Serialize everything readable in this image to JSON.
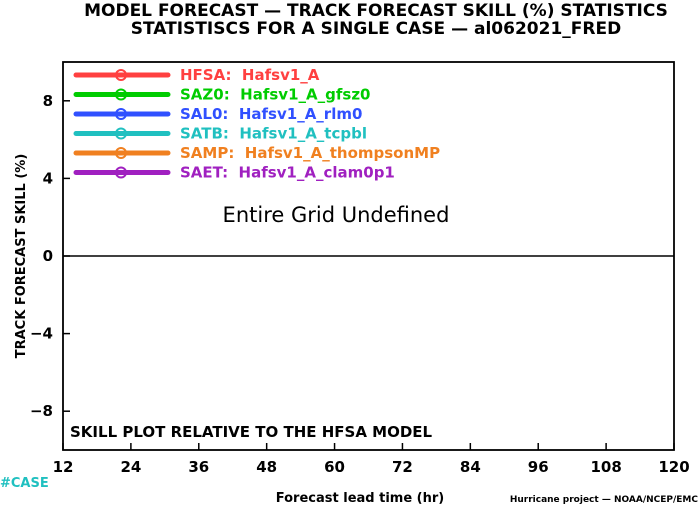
{
  "chart_data": {
    "type": "line",
    "title": "MODEL FORECAST — TRACK FORECAST SKILL (%) STATISTICS",
    "subtitle": "STATISTISCS FOR A SINGLE CASE — al062021_FRED",
    "xlabel": "Forecast lead time (hr)",
    "ylabel": "TRACK FORECAST SKILL (%)",
    "xlim": [
      12,
      120
    ],
    "ylim": [
      -10,
      10
    ],
    "x_ticks": [
      "12",
      "24",
      "36",
      "48",
      "60",
      "72",
      "84",
      "96",
      "108",
      "120"
    ],
    "y_ticks": [
      "8",
      "4",
      "0",
      "−4",
      "−8"
    ],
    "x_tick_values": [
      12,
      24,
      36,
      48,
      60,
      72,
      84,
      96,
      108,
      120
    ],
    "y_tick_values": [
      8,
      4,
      0,
      -4,
      -8
    ],
    "grid": false,
    "legend_position": "top-left",
    "series": [
      {
        "name": "HFSA:  Hafsv1_A",
        "color": "#ff4040",
        "values": []
      },
      {
        "name": "SAZ0:  Hafsv1_A_gfsz0",
        "color": "#00cc00",
        "values": []
      },
      {
        "name": "SAL0:  Hafsv1_A_rlm0",
        "color": "#3050ff",
        "values": []
      },
      {
        "name": "SATB:  Hafsv1_A_tcpbl",
        "color": "#20c0c0",
        "values": []
      },
      {
        "name": "SAMP:  Hafsv1_A_thompsonMP",
        "color": "#f08020",
        "values": []
      },
      {
        "name": "SAET:  Hafsv1_A_clam0p1",
        "color": "#a020c0",
        "values": []
      }
    ],
    "center_message": "Entire Grid Undefined",
    "annotation": "SKILL PLOT RELATIVE TO THE HFSA MODEL"
  },
  "footer": {
    "case_label": "#CASE",
    "case_color": "#20c0c0",
    "credit": "Hurricane project — NOAA/NCEP/EMC"
  }
}
